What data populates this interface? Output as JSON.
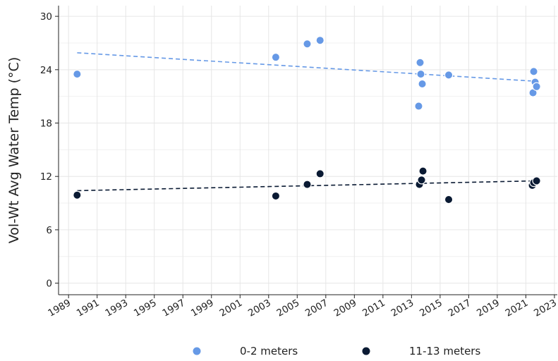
{
  "chart_data": {
    "type": "scatter",
    "title": "",
    "xlabel": "",
    "ylabel": "Vol-Wt Avg Water Temp (°C)",
    "xlim": [
      1988.3,
      2023.2
    ],
    "ylim": [
      -1.3,
      31.2
    ],
    "x_ticks": [
      1989,
      1991,
      1993,
      1995,
      1997,
      1999,
      2001,
      2003,
      2005,
      2007,
      2009,
      2011,
      2013,
      2015,
      2017,
      2019,
      2021,
      2023
    ],
    "y_ticks": [
      0,
      6,
      12,
      18,
      24,
      30
    ],
    "grid": true,
    "legend_position": "bottom",
    "series": [
      {
        "name": "0-2 meters",
        "color": "#6699e6",
        "points": [
          [
            1989.6,
            23.5
          ],
          [
            2003.5,
            25.4
          ],
          [
            2005.7,
            26.9
          ],
          [
            2006.6,
            27.3
          ],
          [
            2013.5,
            19.9
          ],
          [
            2013.6,
            24.8
          ],
          [
            2013.65,
            23.5
          ],
          [
            2013.75,
            22.4
          ],
          [
            2015.6,
            23.4
          ],
          [
            2021.5,
            21.4
          ],
          [
            2021.55,
            23.8
          ],
          [
            2021.65,
            22.6
          ],
          [
            2021.75,
            22.1
          ]
        ],
        "trend": [
          [
            1989.6,
            25.9
          ],
          [
            2021.7,
            22.7
          ]
        ]
      },
      {
        "name": "11-13 meters",
        "color": "#0a1a33",
        "points": [
          [
            1989.6,
            9.9
          ],
          [
            2003.5,
            9.8
          ],
          [
            2005.7,
            11.1
          ],
          [
            2006.6,
            12.3
          ],
          [
            2013.55,
            11.1
          ],
          [
            2013.7,
            11.6
          ],
          [
            2013.8,
            12.6
          ],
          [
            2015.6,
            9.4
          ],
          [
            2021.45,
            11.0
          ],
          [
            2021.55,
            11.3
          ],
          [
            2021.75,
            11.5
          ]
        ],
        "trend": [
          [
            1989.6,
            10.4
          ],
          [
            2021.7,
            11.5
          ]
        ]
      }
    ]
  }
}
